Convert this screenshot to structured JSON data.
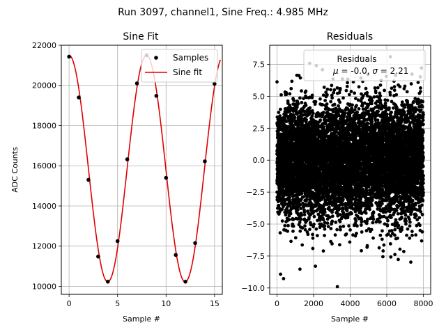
{
  "figure": {
    "suptitle": "Run 3097, channel1, Sine Freq.: 4.985 MHz"
  },
  "chart_data": [
    {
      "type": "scatter",
      "title": "Sine Fit",
      "xlabel": "Sample #",
      "ylabel": "ADC Counts",
      "xlim": [
        -0.8,
        15.8
      ],
      "ylim": [
        9600,
        22000
      ],
      "xticks": [
        0,
        5,
        10,
        15
      ],
      "yticks": [
        10000,
        12000,
        14000,
        16000,
        18000,
        20000,
        22000
      ],
      "grid": true,
      "legend": {
        "placement": "top-right",
        "entries": [
          "Samples",
          "Sine fit"
        ]
      },
      "series": [
        {
          "name": "Samples",
          "kind": "scatter",
          "color": "#000000",
          "x": [
            0,
            1,
            2,
            3,
            4,
            5,
            6,
            7,
            8,
            9,
            10,
            11,
            12,
            13,
            14,
            15
          ],
          "y": [
            21430,
            19400,
            15300,
            11480,
            10230,
            12250,
            16320,
            20100,
            21500,
            19480,
            15400,
            11560,
            10230,
            12150,
            16220,
            20080
          ]
        },
        {
          "name": "Sine fit",
          "kind": "line",
          "color": "#e00000",
          "model": {
            "mean": 15860,
            "amplitude": 5640,
            "period": 7.98,
            "phase_peak_at": 0
          },
          "x_range": [
            0,
            15.6
          ]
        }
      ]
    },
    {
      "type": "scatter",
      "title": "Residuals",
      "xlabel": "Sample #",
      "ylabel": "",
      "xlim": [
        -400,
        8400
      ],
      "ylim": [
        -10.5,
        9.0
      ],
      "xticks": [
        0,
        2000,
        4000,
        6000,
        8000
      ],
      "yticks": [
        -10.0,
        -7.5,
        -5.0,
        -2.5,
        0.0,
        2.5,
        5.0,
        7.5
      ],
      "grid": true,
      "legend": {
        "placement": "top-right",
        "title": "Residuals",
        "label": "μ = -0.0, σ = 2.21"
      },
      "series": [
        {
          "name": "Residuals",
          "kind": "scatter",
          "color": "#000000",
          "n_points": 8000,
          "x_range": [
            0,
            8000
          ],
          "mean": 0.0,
          "sigma": 2.21,
          "notable_points": [
            {
              "x": 3300,
              "y": -9.9
            },
            {
              "x": 2100,
              "y": -8.3
            },
            {
              "x": 2150,
              "y": 7.4
            },
            {
              "x": 6200,
              "y": 8.1
            },
            {
              "x": 5800,
              "y": -7.1
            }
          ]
        }
      ]
    }
  ]
}
